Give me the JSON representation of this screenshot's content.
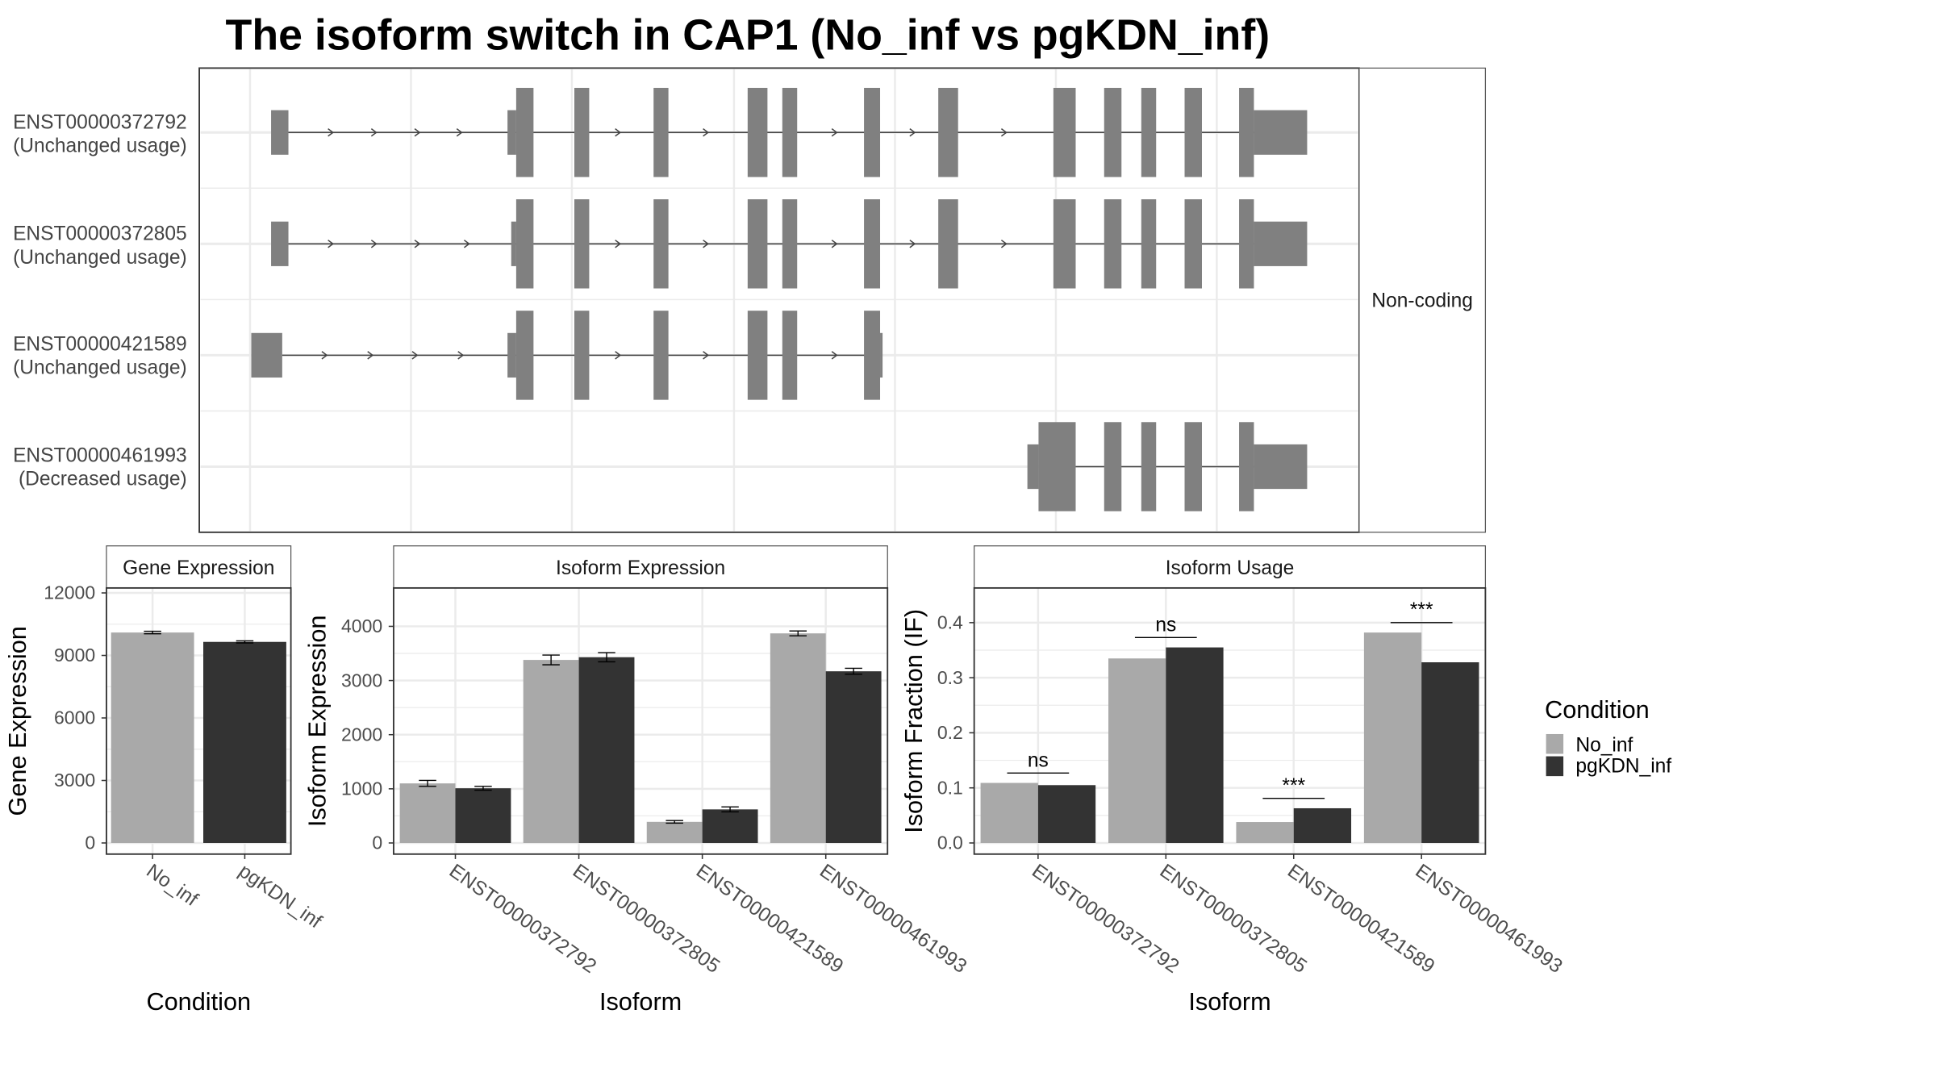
{
  "title": "The isoform switch in CAP1 (No_inf vs pgKDN_inf)",
  "colors": {
    "No_inf": "#a9a9a9",
    "pgKDN_inf": "#333333",
    "exon": "#808080",
    "grid": "#ebebeb"
  },
  "structure": {
    "strip_label": "Non-coding",
    "transcripts": [
      {
        "id": "ENST00000372792",
        "usage": "(Unchanged usage)"
      },
      {
        "id": "ENST00000372805",
        "usage": "(Unchanged usage)"
      },
      {
        "id": "ENST00000421589",
        "usage": "(Unchanged usage)"
      },
      {
        "id": "ENST00000461993",
        "usage": "(Decreased usage)"
      }
    ]
  },
  "legend": {
    "title": "Condition",
    "items": [
      "No_inf",
      "pgKDN_inf"
    ]
  },
  "chart_data": [
    {
      "type": "bar",
      "strip": "Gene Expression",
      "categories": [
        "No_inf",
        "pgKDN_inf"
      ],
      "values": [
        10100,
        9650
      ],
      "errors": [
        60,
        50
      ],
      "xlabel": "Condition",
      "ylabel": "Gene Expression",
      "ylim": [
        0,
        12000
      ],
      "yticks": [
        0,
        3000,
        6000,
        9000,
        12000
      ]
    },
    {
      "type": "bar",
      "strip": "Isoform Expression",
      "categories": [
        "ENST00000372792",
        "ENST00000372805",
        "ENST00000421589",
        "ENST00000461993"
      ],
      "series": [
        {
          "name": "No_inf",
          "values": [
            1100,
            3380,
            390,
            3870
          ],
          "errors": [
            55,
            90,
            25,
            45
          ]
        },
        {
          "name": "pgKDN_inf",
          "values": [
            1010,
            3430,
            620,
            3170
          ],
          "errors": [
            35,
            85,
            45,
            55
          ]
        }
      ],
      "xlabel": "Isoform",
      "ylabel": "Isoform Expression",
      "ylim": [
        0,
        4500
      ],
      "yticks": [
        0,
        1000,
        2000,
        3000,
        4000
      ]
    },
    {
      "type": "bar",
      "strip": "Isoform Usage",
      "categories": [
        "ENST00000372792",
        "ENST00000372805",
        "ENST00000421589",
        "ENST00000461993"
      ],
      "series": [
        {
          "name": "No_inf",
          "values": [
            0.109,
            0.335,
            0.038,
            0.382
          ]
        },
        {
          "name": "pgKDN_inf",
          "values": [
            0.105,
            0.355,
            0.063,
            0.328
          ]
        }
      ],
      "significance": [
        "ns",
        "ns",
        "***",
        "***"
      ],
      "xlabel": "Isoform",
      "ylabel": "Isoform Fraction (IF)",
      "ylim": [
        0,
        0.45
      ],
      "yticks": [
        0.0,
        0.1,
        0.2,
        0.3,
        0.4
      ],
      "ytick_labels": [
        "0.0",
        "0.1",
        "0.2",
        "0.3",
        "0.4"
      ]
    }
  ]
}
